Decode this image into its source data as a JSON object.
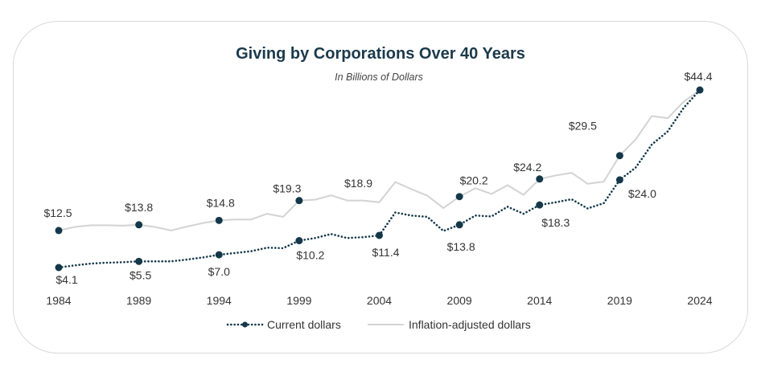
{
  "chart_data": {
    "type": "line",
    "title": "Giving by Corporations Over 40 Years",
    "subtitle": "In Billions of Dollars",
    "x_ticks": [
      1984,
      1989,
      1994,
      1999,
      2004,
      2009,
      2014,
      2019,
      2024
    ],
    "ylim": [
      3,
      46
    ],
    "grid": false,
    "legend_position": "bottom",
    "colors": {
      "current": "#14384a",
      "inflation": "#d3d3d3"
    },
    "series": [
      {
        "name": "Current dollars",
        "key": "current",
        "style": "dotted-with-markers",
        "x": [
          1984,
          1985,
          1986,
          1987,
          1988,
          1989,
          1990,
          1991,
          1992,
          1993,
          1994,
          1995,
          1996,
          1997,
          1998,
          1999,
          2000,
          2001,
          2002,
          2003,
          2004,
          2005,
          2006,
          2007,
          2008,
          2009,
          2010,
          2011,
          2012,
          2013,
          2014,
          2015,
          2016,
          2017,
          2018,
          2019,
          2020,
          2021,
          2022,
          2023,
          2024
        ],
        "values": [
          4.1,
          4.6,
          5.0,
          5.2,
          5.3,
          5.5,
          5.5,
          5.5,
          5.9,
          6.4,
          7.0,
          7.4,
          7.8,
          8.6,
          8.5,
          10.2,
          10.8,
          11.7,
          10.8,
          11.0,
          11.4,
          16.6,
          15.9,
          15.6,
          12.4,
          13.8,
          15.9,
          15.7,
          17.9,
          16.3,
          18.3,
          18.9,
          19.6,
          17.5,
          18.7,
          24.0,
          26.8,
          32.0,
          35.0,
          40.4,
          44.4
        ]
      },
      {
        "name": "Inflation-adjusted dollars",
        "key": "inflation",
        "style": "solid",
        "x": [
          1984,
          1985,
          1986,
          1987,
          1988,
          1989,
          1990,
          1991,
          1992,
          1993,
          1994,
          1995,
          1996,
          1997,
          1998,
          1999,
          2000,
          2001,
          2002,
          2003,
          2004,
          2005,
          2006,
          2007,
          2008,
          2009,
          2010,
          2011,
          2012,
          2013,
          2014,
          2015,
          2016,
          2017,
          2018,
          2019,
          2020,
          2021,
          2022,
          2023,
          2024
        ],
        "values": [
          12.5,
          13.3,
          13.7,
          13.7,
          13.6,
          13.8,
          13.3,
          12.5,
          13.4,
          14.2,
          14.8,
          15.0,
          15.0,
          16.3,
          15.6,
          19.3,
          19.5,
          20.5,
          19.3,
          19.3,
          18.9,
          23.5,
          21.9,
          20.4,
          17.6,
          20.2,
          22.1,
          20.8,
          22.8,
          20.6,
          24.2,
          25.0,
          25.6,
          23.1,
          23.6,
          29.5,
          33.2,
          38.5,
          38.0,
          41.8,
          44.4
        ]
      }
    ],
    "marker_points": {
      "current": {
        "x": [
          1984,
          1989,
          1994,
          1999,
          2004,
          2009,
          2014,
          2019,
          2024
        ],
        "values": [
          4.1,
          5.5,
          7.0,
          10.2,
          11.4,
          13.8,
          18.3,
          24.0,
          44.4
        ],
        "labels": [
          "$4.1",
          "$5.5",
          "$7.0",
          "$10.2",
          "$11.4",
          "$13.8",
          "$18.3",
          "$24.0",
          "$44.4"
        ]
      },
      "inflation": {
        "x": [
          1984,
          1989,
          1994,
          1999,
          2009,
          2014,
          2019
        ],
        "values": [
          12.5,
          13.8,
          14.8,
          19.3,
          20.2,
          24.2,
          29.5
        ],
        "labels": [
          "$12.5",
          "$13.8",
          "$14.8",
          "$19.3",
          "$20.2",
          "$24.2",
          "$29.5"
        ]
      },
      "inflation_label_only": {
        "x": [
          2004
        ],
        "values": [
          18.9
        ],
        "labels": [
          "$18.9"
        ]
      }
    },
    "legend": [
      {
        "key": "current",
        "label": "Current dollars"
      },
      {
        "key": "inflation",
        "label": "Inflation-adjusted dollars"
      }
    ]
  }
}
